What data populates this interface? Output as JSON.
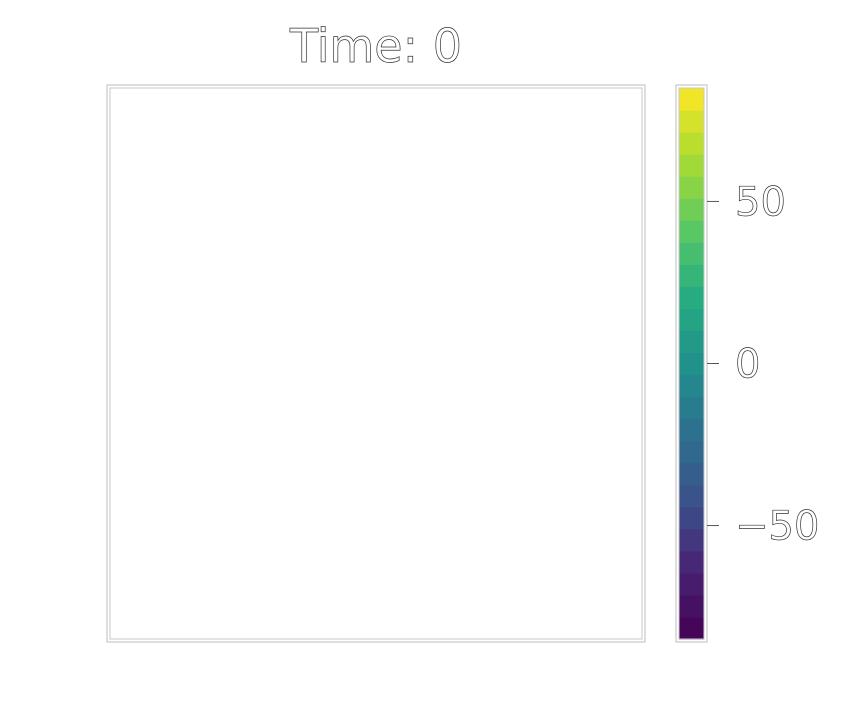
{
  "chart_data": {
    "type": "heatmap",
    "title": "Time: 0",
    "xlabel": "",
    "ylabel": "",
    "plot_area_fill": "#ffffff",
    "colorbar": {
      "colormap": "viridis",
      "discrete_levels": 25,
      "vmin": -85,
      "vmax": 85,
      "ticks": [
        50,
        0,
        -50
      ],
      "tick_labels": [
        "50",
        "0",
        "−50"
      ]
    },
    "colors": {
      "frame": "#c8c8c8",
      "text_outline": "#333333",
      "background": "#ffffff"
    }
  }
}
